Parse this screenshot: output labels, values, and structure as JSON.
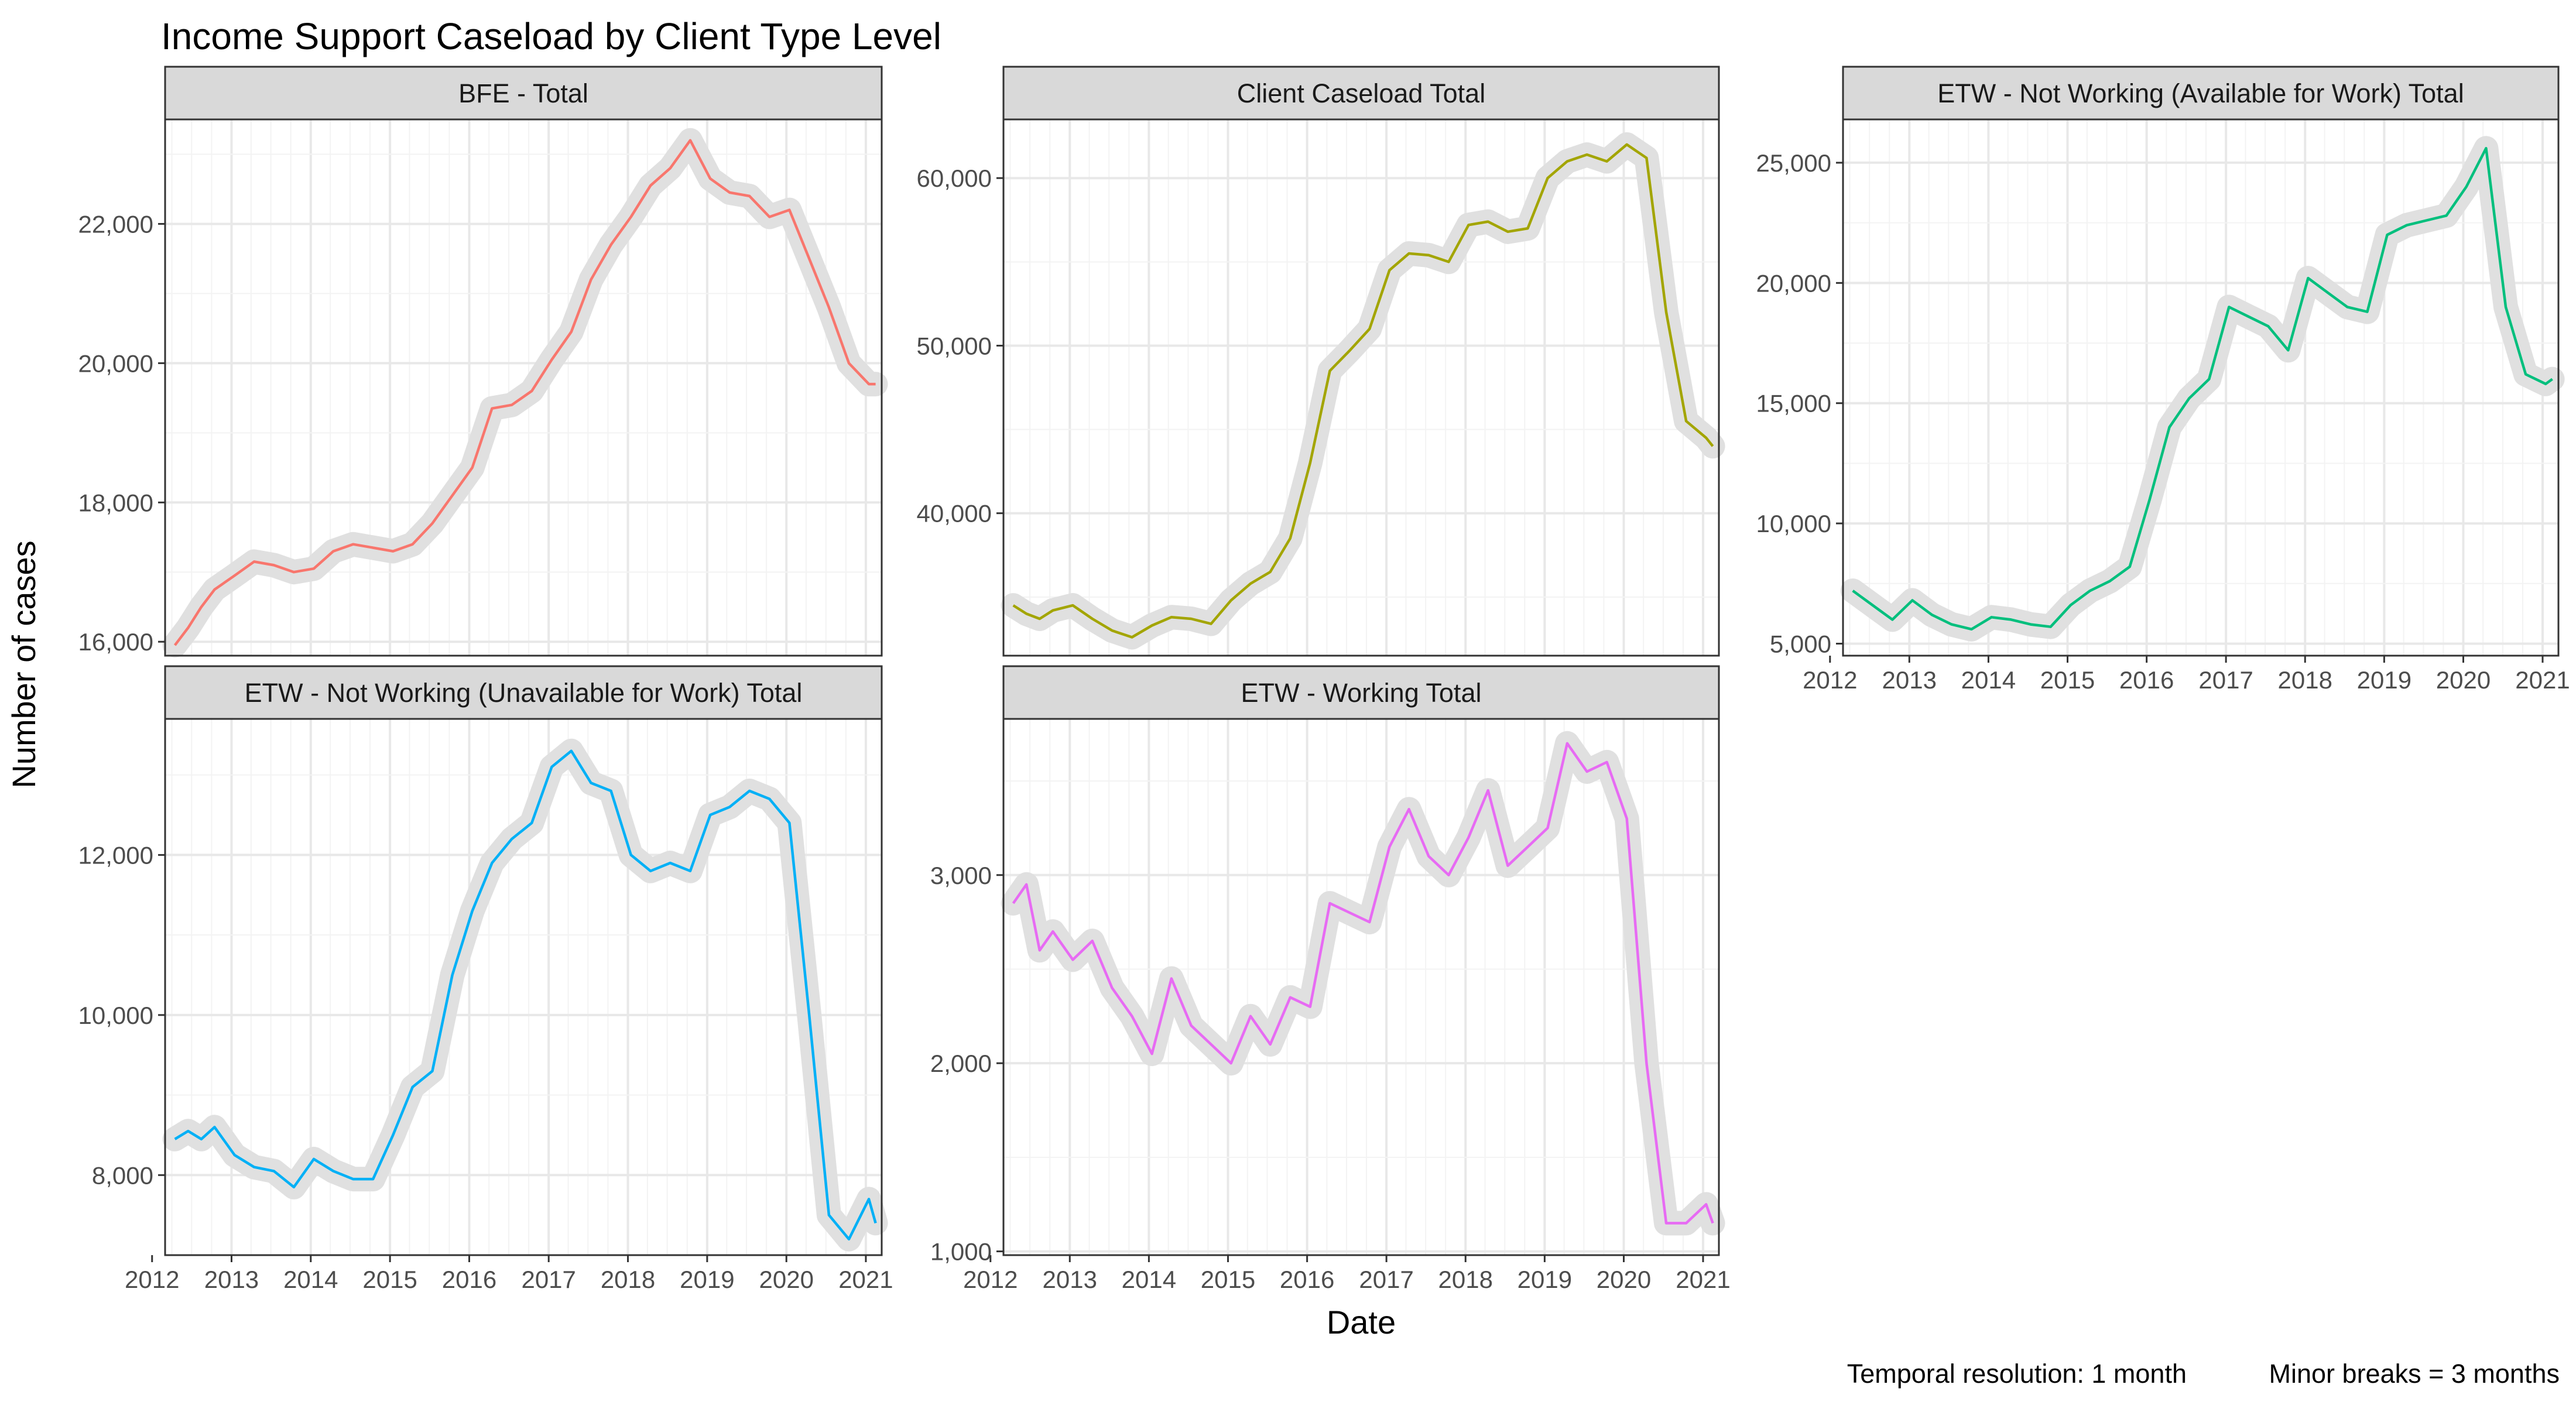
{
  "title": "Income Support Caseload by Client Type Level",
  "xlabel": "Date",
  "ylabel": "Number of cases",
  "caption_left": "Temporal resolution: 1 month",
  "caption_right": "Minor breaks = 3 months",
  "chart_data": [
    {
      "type": "line",
      "title": "BFE - Total",
      "color": "#F8766D",
      "smooth_color": "#e0e0e0",
      "xlim": [
        "2012-03-01",
        "2021-03-15"
      ],
      "ylim": [
        15800,
        23500
      ],
      "yticks": [
        16000,
        18000,
        20000,
        22000
      ],
      "yticklabels": [
        "16,000",
        "18,000",
        "20,000",
        "22,000"
      ],
      "xticks": [
        "2012",
        "2013",
        "2014",
        "2015",
        "2016",
        "2017",
        "2018",
        "2019",
        "2020",
        "2021"
      ],
      "show_x_axis": false,
      "x": [
        "2012-04",
        "2012-06",
        "2012-08",
        "2012-10",
        "2013-01",
        "2013-04",
        "2013-07",
        "2013-10",
        "2014-01",
        "2014-04",
        "2014-07",
        "2014-10",
        "2015-01",
        "2015-04",
        "2015-07",
        "2015-10",
        "2016-01",
        "2016-04",
        "2016-07",
        "2016-10",
        "2017-01",
        "2017-04",
        "2017-07",
        "2017-10",
        "2018-01",
        "2018-04",
        "2018-07",
        "2018-10",
        "2019-01",
        "2019-04",
        "2019-07",
        "2019-10",
        "2020-01",
        "2020-04",
        "2020-07",
        "2020-10",
        "2021-01",
        "2021-02"
      ],
      "y": [
        15950,
        16200,
        16500,
        16750,
        16950,
        17150,
        17100,
        17000,
        17050,
        17300,
        17400,
        17350,
        17300,
        17400,
        17700,
        18100,
        18500,
        19350,
        19400,
        19600,
        20050,
        20450,
        21200,
        21700,
        22100,
        22550,
        22800,
        23200,
        22650,
        22450,
        22400,
        22100,
        22200,
        21500,
        20800,
        20000,
        19700,
        19700
      ]
    },
    {
      "type": "line",
      "title": "Client Caseload Total",
      "color": "#A3A500",
      "smooth_color": "#e0e0e0",
      "xlim": [
        "2012-03-01",
        "2021-03-15"
      ],
      "ylim": [
        31500,
        63500
      ],
      "yticks": [
        40000,
        50000,
        60000
      ],
      "yticklabels": [
        "40,000",
        "50,000",
        "60,000"
      ],
      "xticks": [
        "2012",
        "2013",
        "2014",
        "2015",
        "2016",
        "2017",
        "2018",
        "2019",
        "2020",
        "2021"
      ],
      "show_x_axis": false,
      "x": [
        "2012-04",
        "2012-06",
        "2012-08",
        "2012-10",
        "2013-01",
        "2013-04",
        "2013-07",
        "2013-10",
        "2014-01",
        "2014-04",
        "2014-07",
        "2014-10",
        "2015-01",
        "2015-04",
        "2015-07",
        "2015-10",
        "2016-01",
        "2016-04",
        "2016-07",
        "2016-10",
        "2017-01",
        "2017-04",
        "2017-07",
        "2017-10",
        "2018-01",
        "2018-04",
        "2018-07",
        "2018-10",
        "2019-01",
        "2019-04",
        "2019-07",
        "2019-10",
        "2020-01",
        "2020-04",
        "2020-07",
        "2020-10",
        "2021-01",
        "2021-02"
      ],
      "y": [
        34500,
        34000,
        33700,
        34200,
        34500,
        33700,
        33000,
        32600,
        33300,
        33800,
        33700,
        33400,
        34800,
        35800,
        36500,
        38500,
        43000,
        48500,
        49700,
        51000,
        54500,
        55500,
        55400,
        55000,
        57200,
        57400,
        56800,
        57000,
        60000,
        61000,
        61400,
        61000,
        62000,
        61200,
        52000,
        45500,
        44500,
        44000
      ]
    },
    {
      "type": "line",
      "title": "ETW - Not Working (Available for Work) Total",
      "color": "#00BF7D",
      "smooth_color": "#e0e0e0",
      "xlim": [
        "2012-03-01",
        "2021-03-15"
      ],
      "ylim": [
        4500,
        26800
      ],
      "yticks": [
        5000,
        10000,
        15000,
        20000,
        25000
      ],
      "yticklabels": [
        "5,000",
        "10,000",
        "15,000",
        "20,000",
        "25,000"
      ],
      "xticks": [
        "2012",
        "2013",
        "2014",
        "2015",
        "2016",
        "2017",
        "2018",
        "2019",
        "2020",
        "2021"
      ],
      "show_x_axis": true,
      "x": [
        "2012-04",
        "2012-06",
        "2012-08",
        "2012-10",
        "2013-01",
        "2013-04",
        "2013-07",
        "2013-10",
        "2014-01",
        "2014-04",
        "2014-07",
        "2014-10",
        "2015-01",
        "2015-04",
        "2015-07",
        "2015-10",
        "2016-01",
        "2016-04",
        "2016-07",
        "2016-10",
        "2017-01",
        "2017-04",
        "2017-07",
        "2017-10",
        "2018-01",
        "2018-04",
        "2018-07",
        "2018-10",
        "2019-01",
        "2019-04",
        "2019-07",
        "2019-10",
        "2020-01",
        "2020-04",
        "2020-07",
        "2020-10",
        "2021-01",
        "2021-02"
      ],
      "y": [
        7200,
        6800,
        6400,
        6000,
        6800,
        6200,
        5800,
        5600,
        6100,
        6000,
        5800,
        5700,
        6600,
        7200,
        7600,
        8200,
        11000,
        14000,
        15200,
        16000,
        19000,
        18600,
        18200,
        17200,
        20200,
        19600,
        19000,
        18800,
        22000,
        22400,
        22600,
        22800,
        24000,
        25600,
        19000,
        16200,
        15800,
        16000
      ]
    },
    {
      "type": "line",
      "title": "ETW - Not Working (Unavailable for Work) Total",
      "color": "#00B0F6",
      "smooth_color": "#e0e0e0",
      "xlim": [
        "2012-03-01",
        "2021-03-15"
      ],
      "ylim": [
        7000,
        13700
      ],
      "yticks": [
        8000,
        10000,
        12000
      ],
      "yticklabels": [
        "8,000",
        "10,000",
        "12,000"
      ],
      "xticks": [
        "2012",
        "2013",
        "2014",
        "2015",
        "2016",
        "2017",
        "2018",
        "2019",
        "2020",
        "2021"
      ],
      "show_x_axis": true,
      "x": [
        "2012-04",
        "2012-06",
        "2012-08",
        "2012-10",
        "2013-01",
        "2013-04",
        "2013-07",
        "2013-10",
        "2014-01",
        "2014-04",
        "2014-07",
        "2014-10",
        "2015-01",
        "2015-04",
        "2015-07",
        "2015-10",
        "2016-01",
        "2016-04",
        "2016-07",
        "2016-10",
        "2017-01",
        "2017-04",
        "2017-07",
        "2017-10",
        "2018-01",
        "2018-04",
        "2018-07",
        "2018-10",
        "2019-01",
        "2019-04",
        "2019-07",
        "2019-10",
        "2020-01",
        "2020-04",
        "2020-07",
        "2020-10",
        "2021-01",
        "2021-02"
      ],
      "y": [
        8450,
        8550,
        8450,
        8600,
        8250,
        8100,
        8050,
        7850,
        8200,
        8050,
        7950,
        7950,
        8500,
        9100,
        9300,
        10500,
        11300,
        11900,
        12200,
        12400,
        13100,
        13300,
        12900,
        12800,
        12000,
        11800,
        11900,
        11800,
        12500,
        12600,
        12800,
        12700,
        12400,
        10000,
        7500,
        7200,
        7700,
        7400
      ]
    },
    {
      "type": "line",
      "title": "ETW - Working Total",
      "color": "#E76BF3",
      "smooth_color": "#e0e0e0",
      "xlim": [
        "2012-03-01",
        "2021-03-15"
      ],
      "ylim": [
        980,
        3830
      ],
      "yticks": [
        1000,
        2000,
        3000
      ],
      "yticklabels": [
        "1,000",
        "2,000",
        "3,000"
      ],
      "xticks": [
        "2012",
        "2013",
        "2014",
        "2015",
        "2016",
        "2017",
        "2018",
        "2019",
        "2020",
        "2021"
      ],
      "show_x_axis": true,
      "x": [
        "2012-04",
        "2012-06",
        "2012-08",
        "2012-10",
        "2013-01",
        "2013-04",
        "2013-07",
        "2013-10",
        "2014-01",
        "2014-04",
        "2014-07",
        "2014-10",
        "2015-01",
        "2015-04",
        "2015-07",
        "2015-10",
        "2016-01",
        "2016-04",
        "2016-07",
        "2016-10",
        "2017-01",
        "2017-04",
        "2017-07",
        "2017-10",
        "2018-01",
        "2018-04",
        "2018-07",
        "2018-10",
        "2019-01",
        "2019-04",
        "2019-07",
        "2019-10",
        "2020-01",
        "2020-04",
        "2020-07",
        "2020-10",
        "2021-01",
        "2021-02"
      ],
      "y": [
        2850,
        2950,
        2600,
        2700,
        2550,
        2650,
        2400,
        2250,
        2050,
        2450,
        2200,
        2100,
        2000,
        2250,
        2100,
        2350,
        2300,
        2850,
        2800,
        2750,
        3150,
        3350,
        3100,
        3000,
        3200,
        3450,
        3050,
        3150,
        3250,
        3700,
        3550,
        3600,
        3300,
        2000,
        1150,
        1150,
        1250,
        1150
      ]
    }
  ]
}
